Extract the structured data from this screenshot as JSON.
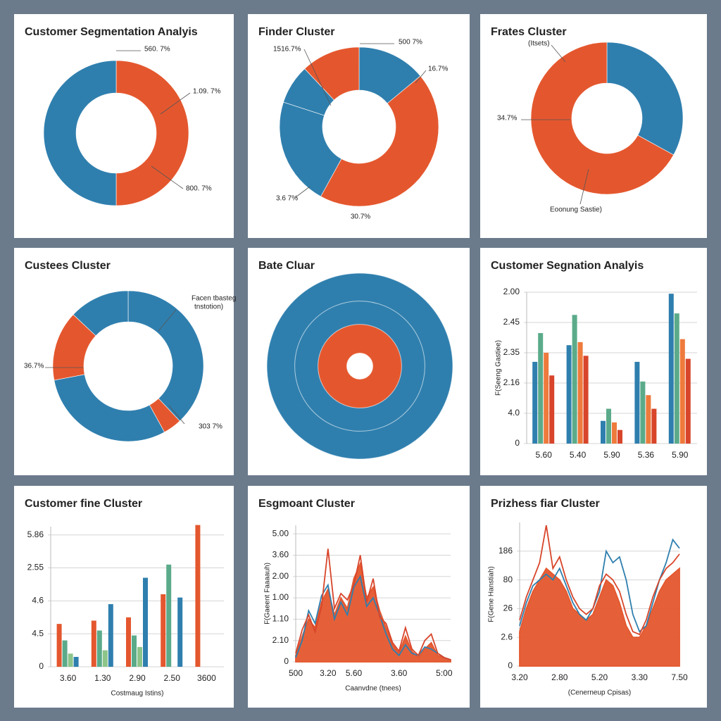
{
  "chart_data": [
    {
      "type": "donut",
      "title": "Customer Segmentation Analyis",
      "values": [
        50,
        50
      ],
      "colors": [
        "#e4572e",
        "#2f7fae"
      ],
      "annotations": [
        "560. 7%",
        "1.09. 7%",
        "800. 7%"
      ]
    },
    {
      "type": "donut",
      "title": "Finder Cluster",
      "values": [
        14,
        44,
        22,
        8,
        12
      ],
      "colors": [
        "#2f7fae",
        "#e4572e",
        "#2f7fae",
        "#2f7fae",
        "#e4572e"
      ],
      "annotations": [
        "500 7%",
        "16.7%",
        "1516.7%",
        "3.6 7%",
        "30.7%"
      ]
    },
    {
      "type": "donut",
      "title": "Frates Cluster",
      "values": [
        33,
        67
      ],
      "colors": [
        "#2f7fae",
        "#e4572e"
      ],
      "annotations": [
        "(Itsets)",
        "34.7%",
        "Eoonung Sastie)"
      ]
    },
    {
      "type": "donut",
      "title": "Custees Cluster",
      "values": [
        38,
        4,
        30,
        15,
        13
      ],
      "colors": [
        "#2f7fae",
        "#e4572e",
        "#2f7fae",
        "#e4572e",
        "#2f7fae"
      ],
      "annotations": [
        "Facen tbasteg",
        "tnstotion)",
        "36.7%",
        "303 7%"
      ]
    },
    {
      "type": "rings",
      "title": "Bate Cluar",
      "values": [
        100,
        70,
        45,
        14
      ],
      "colors": [
        "#2f7fae",
        "#2f7fae",
        "#e4572e",
        "#ffffff"
      ]
    },
    {
      "type": "bar",
      "title": "Customer Segnation Analyis",
      "ylabel": "F(Seeng Gastiee)",
      "categories": [
        "5.60",
        "5.40",
        "5.90",
        "5.36",
        "5.90"
      ],
      "series": [
        {
          "color": "#2f7fae",
          "values": [
            2.7,
            3.25,
            0.75,
            2.7,
            4.95
          ]
        },
        {
          "color": "#5bab8a",
          "values": [
            3.65,
            4.25,
            1.15,
            2.05,
            4.3
          ]
        },
        {
          "color": "#ee7a3c",
          "values": [
            3.0,
            3.35,
            0.7,
            1.6,
            3.45
          ]
        },
        {
          "color": "#d8452a",
          "values": [
            2.25,
            2.9,
            0.45,
            1.15,
            2.8
          ]
        }
      ],
      "ylim": [
        0,
        5
      ],
      "yticks": [
        {
          "value": 0,
          "label": "0"
        },
        {
          "value": 1,
          "label": "4.0"
        },
        {
          "value": 2,
          "label": "2.16"
        },
        {
          "value": 3,
          "label": "2.35"
        },
        {
          "value": 4,
          "label": "2.45"
        },
        {
          "value": 5,
          "label": "2.00"
        }
      ],
      "grid": true
    },
    {
      "type": "bar",
      "title": "Customer fine Cluster",
      "xlabel": "Costmaug Istins)",
      "categories": [
        "3.60",
        "1.30",
        "2.90",
        "2.50",
        "3600"
      ],
      "series": [
        {
          "color": "#e4572e",
          "values": [
            1.3,
            1.4,
            1.5,
            2.2,
            4.3
          ]
        },
        {
          "color": "#5bab8a",
          "values": [
            0.8,
            1.1,
            0.95,
            3.1,
            null
          ]
        },
        {
          "color": "#8cc48a",
          "values": [
            0.4,
            0.5,
            0.6,
            null,
            null
          ]
        },
        {
          "color": "#2f7fae",
          "values": [
            0.3,
            1.9,
            2.7,
            2.1,
            null
          ]
        }
      ],
      "ylim": [
        0,
        4.25
      ],
      "yticks": [
        {
          "value": 0,
          "label": "0"
        },
        {
          "value": 1,
          "label": "4.5"
        },
        {
          "value": 2,
          "label": "4.6"
        },
        {
          "value": 3,
          "label": "2.55"
        },
        {
          "value": 4,
          "label": "5.86"
        }
      ],
      "grid": true
    },
    {
      "type": "area",
      "title": "Esgmoant Cluster",
      "ylabel": "F(Gaeent Faaaauh)",
      "xlabel": "Caanvdne (tnees)",
      "x": [
        0,
        1,
        2,
        3,
        4,
        5,
        6,
        7,
        8,
        9,
        10,
        11,
        12,
        13,
        14,
        15,
        16,
        17,
        18,
        19,
        20,
        21,
        22,
        23,
        24
      ],
      "series": [
        {
          "color": "#e4572e",
          "fill": true,
          "values": [
            0.3,
            1.2,
            2.0,
            1.6,
            2.8,
            3.4,
            2.2,
            3.0,
            2.5,
            3.9,
            4.6,
            3.0,
            3.5,
            2.4,
            1.6,
            0.8,
            0.4,
            1.2,
            0.5,
            0.2,
            0.6,
            0.9,
            0.3,
            0.2,
            0.1
          ]
        },
        {
          "color": "#2f7fae",
          "fill": false,
          "values": [
            0.2,
            1.0,
            2.4,
            1.8,
            3.1,
            3.6,
            2.0,
            2.8,
            2.2,
            3.5,
            4.0,
            2.6,
            3.0,
            2.2,
            1.3,
            0.6,
            0.3,
            0.8,
            0.4,
            0.3,
            0.7,
            0.6,
            0.4,
            0.2,
            0.1
          ]
        },
        {
          "color": "#d8452a",
          "fill": false,
          "values": [
            0.4,
            1.5,
            2.2,
            1.4,
            2.6,
            5.3,
            2.5,
            3.2,
            2.9,
            3.6,
            5.0,
            2.8,
            3.9,
            2.1,
            1.8,
            0.9,
            0.5,
            1.6,
            0.6,
            0.3,
            1.0,
            1.3,
            0.4,
            0.2,
            0.1
          ]
        }
      ],
      "xlim": [
        0,
        24
      ],
      "ylim": [
        0,
        6.4
      ],
      "xticks": [
        {
          "value": 0,
          "label": "500"
        },
        {
          "value": 5,
          "label": "3.20"
        },
        {
          "value": 9,
          "label": "5.60"
        },
        {
          "value": 16,
          "label": "3.60"
        },
        {
          "value": 23,
          "label": "5:00"
        }
      ],
      "yticks": [
        {
          "value": 0,
          "label": "0"
        },
        {
          "value": 1,
          "label": "2.10"
        },
        {
          "value": 2,
          "label": "1.10"
        },
        {
          "value": 3,
          "label": "1.00"
        },
        {
          "value": 4,
          "label": "2.00"
        },
        {
          "value": 5,
          "label": "3.60"
        },
        {
          "value": 6,
          "label": "5.00"
        }
      ],
      "grid": true
    },
    {
      "type": "area",
      "title": "Prizhess fiar Cluster",
      "ylabel": "F(Gene Hanstiah)",
      "xlabel": "(Cenerneup Cpisas)",
      "x": [
        0,
        1,
        2,
        3,
        4,
        5,
        6,
        7,
        8,
        9,
        10,
        11,
        12,
        13,
        14,
        15,
        16,
        17,
        18,
        19,
        20,
        21,
        22,
        23,
        24
      ],
      "series": [
        {
          "color": "#e4572e",
          "fill": true,
          "values": [
            1.2,
            2.0,
            2.6,
            3.0,
            3.4,
            3.2,
            3.0,
            2.6,
            2.0,
            1.8,
            1.6,
            1.8,
            2.4,
            3.0,
            2.8,
            2.2,
            1.4,
            1.0,
            1.0,
            1.4,
            2.0,
            2.6,
            3.0,
            3.2,
            3.4
          ]
        },
        {
          "color": "#2f7fae",
          "fill": false,
          "values": [
            1.4,
            2.2,
            2.8,
            3.0,
            3.2,
            3.0,
            3.4,
            2.8,
            2.2,
            1.8,
            1.6,
            2.0,
            2.6,
            4.0,
            3.6,
            3.8,
            3.0,
            1.8,
            1.2,
            1.4,
            2.2,
            3.0,
            3.6,
            4.4,
            4.1
          ]
        },
        {
          "color": "#d8452a",
          "fill": false,
          "values": [
            1.6,
            2.4,
            3.0,
            3.6,
            4.9,
            3.4,
            3.8,
            3.0,
            2.4,
            2.0,
            1.8,
            2.0,
            2.8,
            3.2,
            3.0,
            2.6,
            1.8,
            1.2,
            1.1,
            1.6,
            2.4,
            3.0,
            3.4,
            3.6,
            3.9
          ]
        }
      ],
      "xlim": [
        0,
        24
      ],
      "ylim": [
        0,
        5
      ],
      "xticks": [
        {
          "value": 0,
          "label": "3.20"
        },
        {
          "value": 6,
          "label": "2.80"
        },
        {
          "value": 12,
          "label": "5.20"
        },
        {
          "value": 18,
          "label": "3.30"
        },
        {
          "value": 24,
          "label": "7.50"
        }
      ],
      "yticks": [
        {
          "value": 0,
          "label": "0"
        },
        {
          "value": 1,
          "label": "2.6"
        },
        {
          "value": 2,
          "label": "26"
        },
        {
          "value": 3,
          "label": "80"
        },
        {
          "value": 4,
          "label": "186"
        }
      ],
      "grid": true
    }
  ]
}
